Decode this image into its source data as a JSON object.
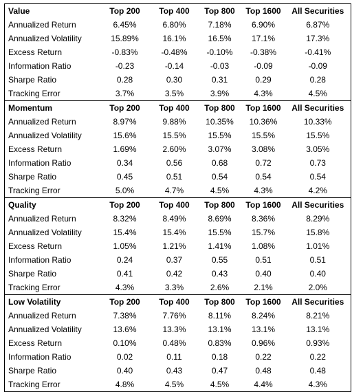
{
  "table": {
    "columns": [
      "Top 200",
      "Top 400",
      "Top 800",
      "Top 1600",
      "All Securities"
    ],
    "blocks": [
      {
        "factor": "Value",
        "rows": [
          {
            "label": "Annualized Return",
            "values": [
              "6.45%",
              "6.80%",
              "7.18%",
              "6.90%",
              "6.87%"
            ]
          },
          {
            "label": "Annualized Volatility",
            "values": [
              "15.89%",
              "16.1%",
              "16.5%",
              "17.1%",
              "17.3%"
            ]
          },
          {
            "label": "Excess Return",
            "values": [
              "-0.83%",
              "-0.48%",
              "-0.10%",
              "-0.38%",
              "-0.41%"
            ]
          },
          {
            "label": "Information Ratio",
            "values": [
              "-0.23",
              "-0.14",
              "-0.03",
              "-0.09",
              "-0.09"
            ]
          },
          {
            "label": "Sharpe Ratio",
            "values": [
              "0.28",
              "0.30",
              "0.31",
              "0.29",
              "0.28"
            ]
          },
          {
            "label": "Tracking Error",
            "values": [
              "3.7%",
              "3.5%",
              "3.9%",
              "4.3%",
              "4.5%"
            ]
          }
        ]
      },
      {
        "factor": "Momentum",
        "rows": [
          {
            "label": "Annualized Return",
            "values": [
              "8.97%",
              "9.88%",
              "10.35%",
              "10.36%",
              "10.33%"
            ]
          },
          {
            "label": "Annualized Volatility",
            "values": [
              "15.6%",
              "15.5%",
              "15.5%",
              "15.5%",
              "15.5%"
            ]
          },
          {
            "label": "Excess Return",
            "values": [
              "1.69%",
              "2.60%",
              "3.07%",
              "3.08%",
              "3.05%"
            ]
          },
          {
            "label": "Information Ratio",
            "values": [
              "0.34",
              "0.56",
              "0.68",
              "0.72",
              "0.73"
            ]
          },
          {
            "label": "Sharpe Ratio",
            "values": [
              "0.45",
              "0.51",
              "0.54",
              "0.54",
              "0.54"
            ]
          },
          {
            "label": "Tracking Error",
            "values": [
              "5.0%",
              "4.7%",
              "4.5%",
              "4.3%",
              "4.2%"
            ]
          }
        ]
      },
      {
        "factor": "Quality",
        "rows": [
          {
            "label": "Annualized Return",
            "values": [
              "8.32%",
              "8.49%",
              "8.69%",
              "8.36%",
              "8.29%"
            ]
          },
          {
            "label": "Annualized Volatility",
            "values": [
              "15.4%",
              "15.4%",
              "15.5%",
              "15.7%",
              "15.8%"
            ]
          },
          {
            "label": "Excess Return",
            "values": [
              "1.05%",
              "1.21%",
              "1.41%",
              "1.08%",
              "1.01%"
            ]
          },
          {
            "label": "Information Ratio",
            "values": [
              "0.24",
              "0.37",
              "0.55",
              "0.51",
              "0.51"
            ]
          },
          {
            "label": "Sharpe Ratio",
            "values": [
              "0.41",
              "0.42",
              "0.43",
              "0.40",
              "0.40"
            ]
          },
          {
            "label": "Tracking Error",
            "values": [
              "4.3%",
              "3.3%",
              "2.6%",
              "2.1%",
              "2.0%"
            ]
          }
        ]
      },
      {
        "factor": "Low Volatility",
        "rows": [
          {
            "label": "Annualized Return",
            "values": [
              "7.38%",
              "7.76%",
              "8.11%",
              "8.24%",
              "8.21%"
            ]
          },
          {
            "label": "Annualized Volatility",
            "values": [
              "13.6%",
              "13.3%",
              "13.1%",
              "13.1%",
              "13.1%"
            ]
          },
          {
            "label": "Excess Return",
            "values": [
              "0.10%",
              "0.48%",
              "0.83%",
              "0.96%",
              "0.93%"
            ]
          },
          {
            "label": "Information Ratio",
            "values": [
              "0.02",
              "0.11",
              "0.18",
              "0.22",
              "0.22"
            ]
          },
          {
            "label": "Sharpe Ratio",
            "values": [
              "0.40",
              "0.43",
              "0.47",
              "0.48",
              "0.48"
            ]
          },
          {
            "label": "Tracking Error",
            "values": [
              "4.8%",
              "4.5%",
              "4.5%",
              "4.4%",
              "4.3%"
            ]
          }
        ]
      }
    ]
  }
}
